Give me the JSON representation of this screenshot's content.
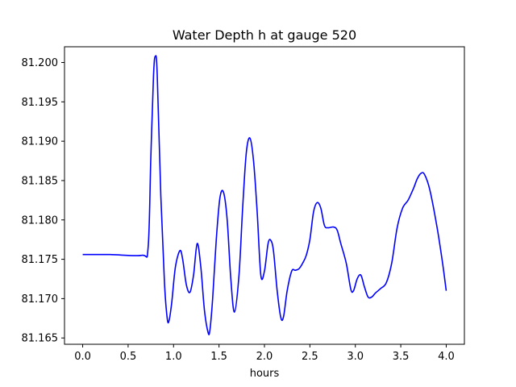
{
  "chart_data": {
    "type": "line",
    "title": "Water Depth h at gauge 520",
    "xlabel": "hours",
    "ylabel": "",
    "xlim": [
      -0.2,
      4.2
    ],
    "ylim": [
      81.1642,
      81.202
    ],
    "grid": false,
    "xticks": [
      0.0,
      0.5,
      1.0,
      1.5,
      2.0,
      2.5,
      3.0,
      3.5,
      4.0
    ],
    "xtick_labels": [
      "0.0",
      "0.5",
      "1.0",
      "1.5",
      "2.0",
      "2.5",
      "3.0",
      "3.5",
      "4.0"
    ],
    "yticks": [
      81.165,
      81.17,
      81.175,
      81.18,
      81.185,
      81.19,
      81.195,
      81.2
    ],
    "ytick_labels": [
      "81.165",
      "81.170",
      "81.175",
      "81.180",
      "81.185",
      "81.190",
      "81.195",
      "81.200"
    ],
    "series": [
      {
        "name": "",
        "color": "#0000ff",
        "x": [
          0.0,
          0.3,
          0.65,
          0.72,
          0.75,
          0.78,
          0.8,
          0.82,
          0.86,
          0.9,
          0.93,
          0.95,
          0.98,
          1.02,
          1.07,
          1.1,
          1.14,
          1.18,
          1.22,
          1.26,
          1.3,
          1.34,
          1.38,
          1.4,
          1.43,
          1.47,
          1.51,
          1.55,
          1.59,
          1.63,
          1.67,
          1.72,
          1.76,
          1.8,
          1.84,
          1.88,
          1.92,
          1.96,
          2.0,
          2.04,
          2.07,
          2.1,
          2.14,
          2.18,
          2.21,
          2.25,
          2.3,
          2.34,
          2.38,
          2.42,
          2.46,
          2.5,
          2.54,
          2.58,
          2.62,
          2.66,
          2.7,
          2.76,
          2.8,
          2.84,
          2.9,
          2.95,
          2.98,
          3.02,
          3.06,
          3.1,
          3.14,
          3.18,
          3.22,
          3.28,
          3.34,
          3.4,
          3.46,
          3.52,
          3.58,
          3.64,
          3.68,
          3.72,
          3.76,
          3.82,
          3.9,
          3.96,
          4.0
        ],
        "values": [
          81.1756,
          81.1756,
          81.1755,
          81.1765,
          81.188,
          81.1985,
          81.2008,
          81.1985,
          81.183,
          81.172,
          81.1675,
          81.1672,
          81.1695,
          81.174,
          81.1761,
          81.175,
          81.1718,
          81.1708,
          81.173,
          81.177,
          81.174,
          81.1685,
          81.1657,
          81.166,
          81.17,
          81.1775,
          81.1828,
          81.1835,
          81.18,
          81.1725,
          81.1683,
          81.173,
          81.1815,
          81.1885,
          81.1904,
          81.1875,
          81.181,
          81.173,
          81.1735,
          81.177,
          81.1774,
          81.176,
          81.171,
          81.1676,
          81.1677,
          81.171,
          81.1735,
          81.1736,
          81.1738,
          81.1745,
          81.1755,
          81.1775,
          81.181,
          81.1822,
          81.1815,
          81.1793,
          81.179,
          81.1791,
          81.1787,
          81.177,
          81.1745,
          81.1712,
          81.171,
          81.1725,
          81.173,
          81.1715,
          81.1702,
          81.1702,
          81.1707,
          81.1713,
          81.172,
          81.1745,
          81.179,
          81.1815,
          81.1825,
          81.184,
          81.1852,
          81.1859,
          81.1858,
          81.1838,
          81.179,
          81.1745,
          81.171
        ]
      }
    ]
  }
}
